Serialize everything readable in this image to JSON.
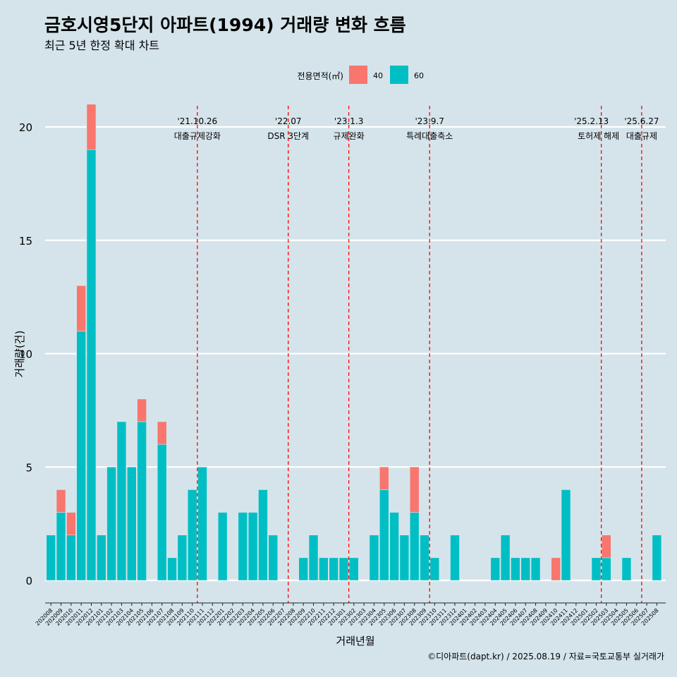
{
  "colors": {
    "background": "#d5e4eb",
    "grid": "#ffffff",
    "series_40": "#f8766d",
    "series_60": "#00bfc4",
    "event_line": "#ff0000"
  },
  "chart_data": {
    "type": "bar",
    "title": "금호시영5단지 아파트(1994) 거래량 변화 흐름",
    "subtitle": "최근 5년 한정 확대 차트",
    "xlabel": "거래년월",
    "ylabel": "거래량(건)",
    "caption": "©디아파트(dapt.kr) / 2025.08.19 / 자료=국토교통부 실거래가",
    "ylim": [
      0,
      20
    ],
    "yticks": [
      "0",
      "5",
      "10",
      "15",
      "20"
    ],
    "grid": "horizontal",
    "legend": {
      "title": "전용면적(㎡)",
      "position": "top",
      "items": [
        "40",
        "60"
      ]
    },
    "categories": [
      "202008",
      "202009",
      "202010",
      "202011",
      "202012",
      "202101",
      "202102",
      "202103",
      "202104",
      "202105",
      "202106",
      "202107",
      "202108",
      "202109",
      "202110",
      "202111",
      "202112",
      "202201",
      "202202",
      "202203",
      "202204",
      "202205",
      "202206",
      "202207",
      "202208",
      "202209",
      "202210",
      "202211",
      "202212",
      "202301",
      "202302",
      "202303",
      "202304",
      "202305",
      "202306",
      "202307",
      "202308",
      "202309",
      "202310",
      "202311",
      "202312",
      "202401",
      "202402",
      "202403",
      "202404",
      "202405",
      "202406",
      "202407",
      "202408",
      "202409",
      "202410",
      "202411",
      "202412",
      "202501",
      "202502",
      "202503",
      "202504",
      "202505",
      "202506",
      "202507",
      "202508"
    ],
    "series": [
      {
        "name": "40",
        "values": [
          0,
          1,
          1,
          2,
          2,
          0,
          0,
          0,
          0,
          1,
          0,
          1,
          0,
          0,
          0,
          0,
          0,
          0,
          0,
          0,
          0,
          0,
          0,
          0,
          0,
          0,
          0,
          0,
          0,
          0,
          0,
          0,
          0,
          1,
          0,
          0,
          2,
          0,
          0,
          0,
          0,
          0,
          0,
          0,
          0,
          0,
          0,
          0,
          0,
          0,
          1,
          0,
          0,
          0,
          0,
          1,
          0,
          0,
          0,
          0,
          0
        ]
      },
      {
        "name": "60",
        "values": [
          2,
          3,
          2,
          11,
          19,
          2,
          5,
          7,
          5,
          7,
          0,
          6,
          1,
          2,
          4,
          5,
          0,
          3,
          0,
          3,
          3,
          4,
          2,
          0,
          0,
          1,
          2,
          1,
          1,
          1,
          1,
          0,
          2,
          4,
          3,
          2,
          3,
          2,
          1,
          0,
          2,
          0,
          0,
          0,
          1,
          2,
          1,
          1,
          1,
          0,
          0,
          4,
          0,
          0,
          1,
          1,
          0,
          1,
          0,
          0,
          2
        ]
      }
    ],
    "events": [
      {
        "date": "'21.10.26",
        "label": "대출규제강화",
        "after": "202110"
      },
      {
        "date": "'22.07",
        "label": "DSR 3단계",
        "after": "202207"
      },
      {
        "date": "'23.1.3",
        "label": "규제완화",
        "after": "202301"
      },
      {
        "date": "'23.9.7",
        "label": "특례대출축소",
        "after": "202309"
      },
      {
        "date": "'25.2.13",
        "label": "토허제 해제",
        "after": "202502"
      },
      {
        "date": "'25.6.27",
        "label": "대출규제",
        "after": "202506"
      }
    ]
  }
}
